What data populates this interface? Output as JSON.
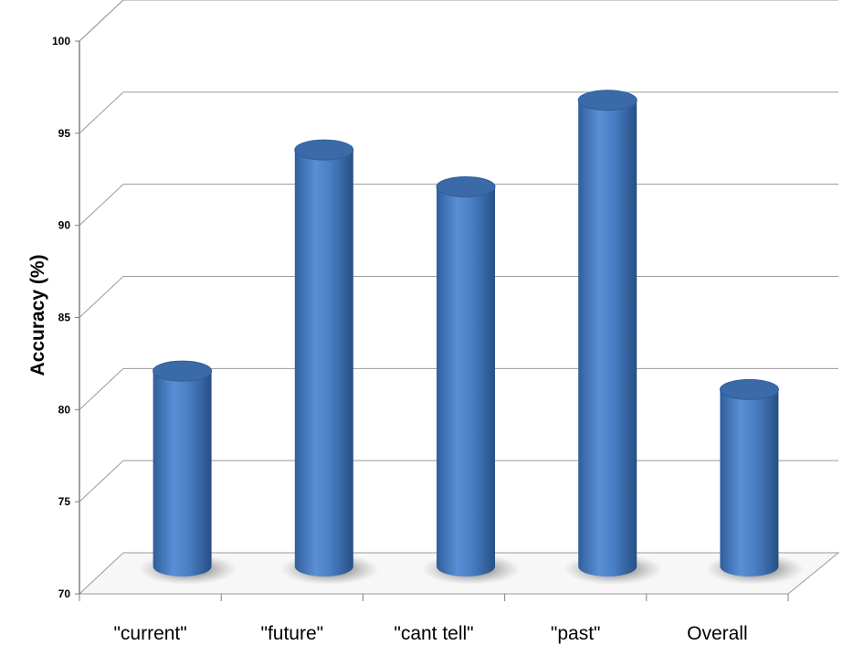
{
  "chart_data": {
    "type": "bar",
    "style": "3d-cylinder",
    "title": "",
    "xlabel": "",
    "ylabel": "Accuracy (%)",
    "categories": [
      "\"current\"",
      "\"future\"",
      "\"cant tell\"",
      "\"past\"",
      "Overall"
    ],
    "values": [
      81,
      93,
      91,
      95.7,
      80
    ],
    "ylim": [
      70,
      100
    ],
    "yticks": [
      70,
      75,
      80,
      85,
      90,
      95,
      100
    ],
    "grid": true,
    "legend": "none",
    "bar_color": "#4a7fc4"
  }
}
